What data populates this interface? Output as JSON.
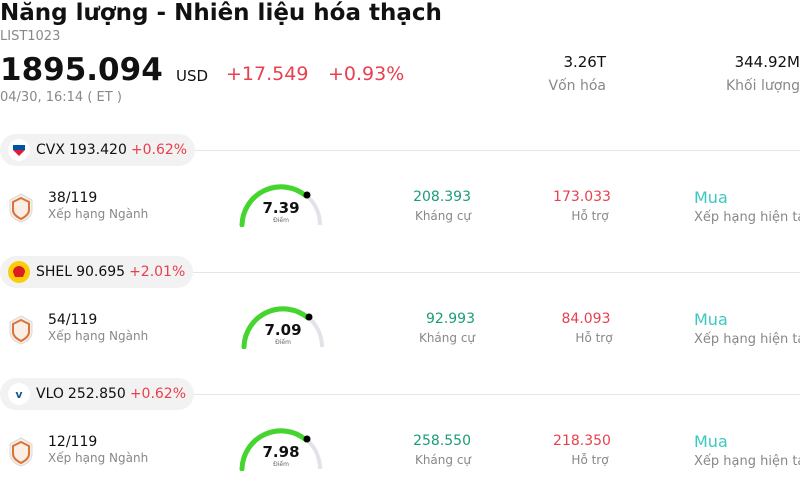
{
  "header": {
    "title": "Năng lượng - Nhiên liệu hóa thạch",
    "code": "LIST1023",
    "price": "1895.094",
    "currency": "USD",
    "change": "+17.549",
    "change_percent": "+0.93%",
    "time": "04/30, 16:14",
    "timezone": "( ET )",
    "market_cap": "3.26T",
    "market_cap_label": "Vốn hóa",
    "volume": "344.92M",
    "volume_label": "Khối lượng"
  },
  "stocks": [
    {
      "ticker": "CVX",
      "price": "193.420",
      "change": "+0.62%",
      "rank": "38/119",
      "rank_label": "Xếp hạng Ngành",
      "score": "7.39",
      "score_label": "Điểm",
      "resistance": "208.393",
      "resistance_label": "Kháng cự",
      "support": "173.033",
      "support_label": "Hỗ trợ",
      "rating": "Mua",
      "rating_label": "Xếp hạng hiện tại"
    },
    {
      "ticker": "SHEL",
      "price": "90.695",
      "change": "+2.01%",
      "rank": "54/119",
      "rank_label": "Xếp hạng Ngành",
      "score": "7.09",
      "score_label": "Điểm",
      "resistance": "92.993",
      "resistance_label": "Kháng cự",
      "support": "84.093",
      "support_label": "Hỗ trợ",
      "rating": "Mua",
      "rating_label": "Xếp hạng hiện tại"
    },
    {
      "ticker": "VLO",
      "price": "252.850",
      "change": "+0.62%",
      "rank": "12/119",
      "rank_label": "Xếp hạng Ngành",
      "score": "7.98",
      "score_label": "Điểm",
      "resistance": "258.550",
      "resistance_label": "Kháng cự",
      "support": "218.350",
      "support_label": "Hỗ trợ",
      "rating": "Mua",
      "rating_label": "Xếp hạng hiện tại"
    }
  ]
}
